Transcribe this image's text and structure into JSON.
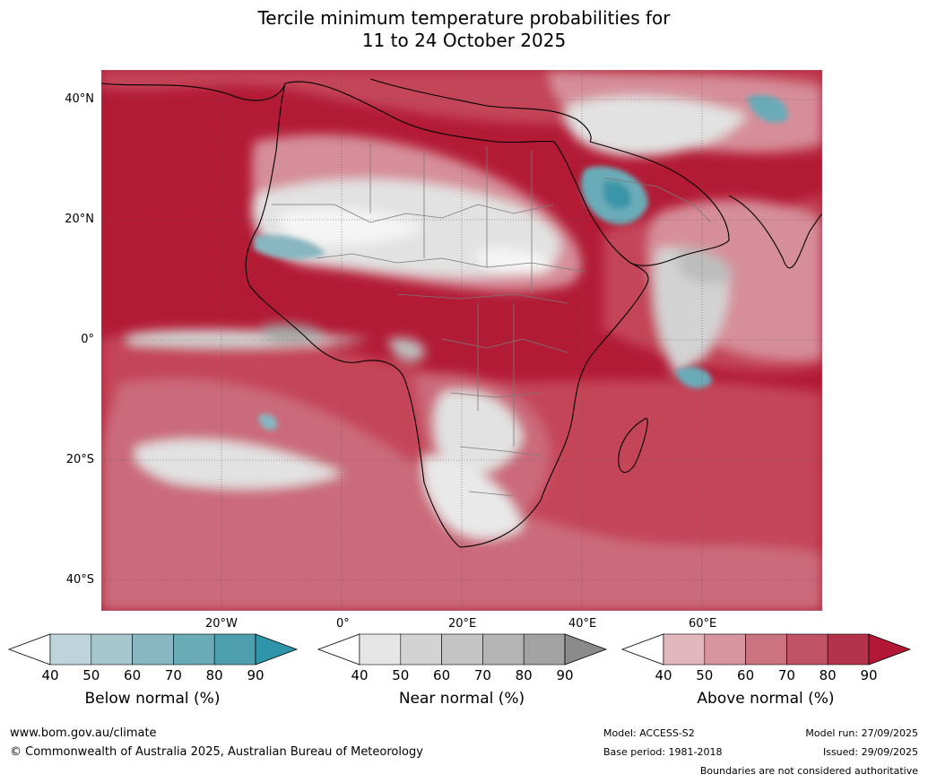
{
  "title": {
    "line1": "Tercile minimum temperature probabilities for",
    "line2": "11 to 24 October 2025"
  },
  "map": {
    "lat_labels": [
      "40°N",
      "20°N",
      "0°",
      "20°S",
      "40°S"
    ],
    "lon_labels": [
      "20°W",
      "0°",
      "20°E",
      "40°E",
      "60°E"
    ],
    "colors": {
      "ocean_above_high": "#b31b35",
      "above_80": "#c44459",
      "above_70": "#cb6a7a",
      "above_60": "#d68e9a",
      "above_50": "#e1b6bd",
      "near_50": "#e2e2e2",
      "near_70": "#bdbdbd",
      "near_80": "#a3a3a3",
      "below_70": "#6aabb8",
      "below_90": "#3a95a8",
      "land_lines": "#7a7a7a",
      "coast": "#000000"
    }
  },
  "colorbars": [
    {
      "name": "below-normal",
      "label": "Below normal (%)",
      "ticks": [
        "40",
        "50",
        "60",
        "70",
        "80",
        "90"
      ],
      "colors": [
        "#bdd4da",
        "#a6c7ce",
        "#88b6c1",
        "#6aabb6",
        "#4d9fae"
      ],
      "extend_color": "#2e95ab"
    },
    {
      "name": "near-normal",
      "label": "Near normal (%)",
      "ticks": [
        "40",
        "50",
        "60",
        "70",
        "80",
        "90"
      ],
      "colors": [
        "#e6e6e6",
        "#d3d3d3",
        "#c4c4c4",
        "#b4b4b4",
        "#a3a3a3"
      ],
      "extend_color": "#8a8a8a"
    },
    {
      "name": "above-normal",
      "label": "Above normal (%)",
      "ticks": [
        "40",
        "50",
        "60",
        "70",
        "80",
        "90"
      ],
      "colors": [
        "#e2b7be",
        "#d7959f",
        "#cb737f",
        "#c05366",
        "#b3334b"
      ],
      "extend_color": "#b21835"
    }
  ],
  "footer": {
    "website": "www.bom.gov.au/climate",
    "copyright": "© Commonwealth of Australia 2025, Australian Bureau of Meteorology",
    "model": "Model: ACCESS-S2",
    "base_period": "Base period: 1981-2018",
    "model_run": "Model run: 27/09/2025",
    "issued": "Issued: 29/09/2025",
    "disclaimer": "Boundaries are not considered authoritative"
  }
}
